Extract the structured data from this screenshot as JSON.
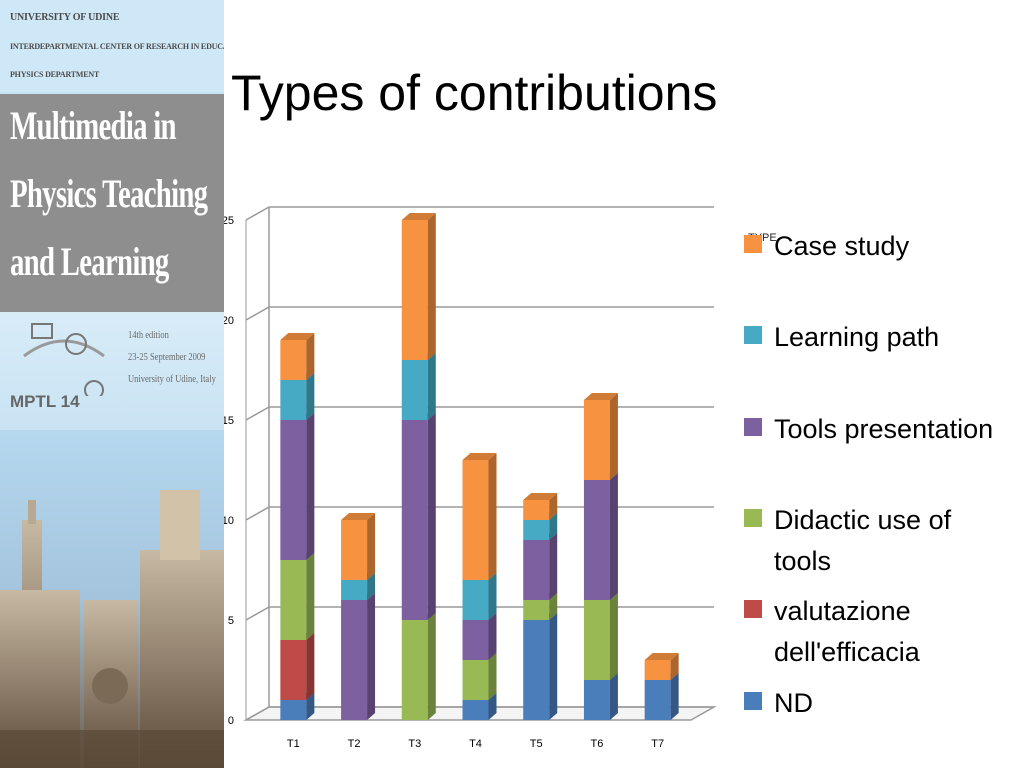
{
  "sidebar": {
    "institution_lines": [
      "UNIVERSITY OF UDINE",
      "INTERDEPARTMENTAL CENTER OF RESEARCH IN EDUCATION",
      "PHYSICS DEPARTMENT"
    ],
    "title_lines": [
      "Multimedia in",
      "Physics Teaching",
      "and Learning"
    ],
    "edition_lines": [
      "14th  edition",
      "23-25 September 2009",
      "University of Udine, Italy"
    ],
    "conference_label": "MPTL   14"
  },
  "slide": {
    "title": "Types of contributions"
  },
  "chart_data": {
    "type": "bar",
    "stacked": true,
    "style": "3d-column",
    "categories": [
      "T1",
      "T2",
      "T3",
      "T4",
      "T5",
      "T6",
      "T7"
    ],
    "ylim": [
      0,
      25
    ],
    "yticks": [
      0,
      5,
      10,
      15,
      20,
      25
    ],
    "grid": true,
    "legend_position": "right",
    "legend_title": "TYPE",
    "series": [
      {
        "name": "ND",
        "color": "#4a7ebb",
        "values": [
          1,
          0,
          0,
          1,
          5,
          2,
          2
        ]
      },
      {
        "name": "valutazione dell'efficacia",
        "color": "#be4b48",
        "values": [
          3,
          0,
          0,
          0,
          0,
          0,
          0
        ]
      },
      {
        "name": "Didactic use of tools",
        "color": "#98b954",
        "values": [
          4,
          0,
          5,
          2,
          1,
          4,
          0
        ]
      },
      {
        "name": "Tools presentation",
        "color": "#7d60a0",
        "values": [
          7,
          6,
          10,
          2,
          3,
          6,
          0
        ]
      },
      {
        "name": "Learning path",
        "color": "#46aac5",
        "values": [
          2,
          1,
          3,
          2,
          1,
          0,
          0
        ]
      },
      {
        "name": "Case study",
        "color": "#f69240",
        "values": [
          2,
          3,
          7,
          6,
          1,
          4,
          1
        ]
      }
    ]
  }
}
